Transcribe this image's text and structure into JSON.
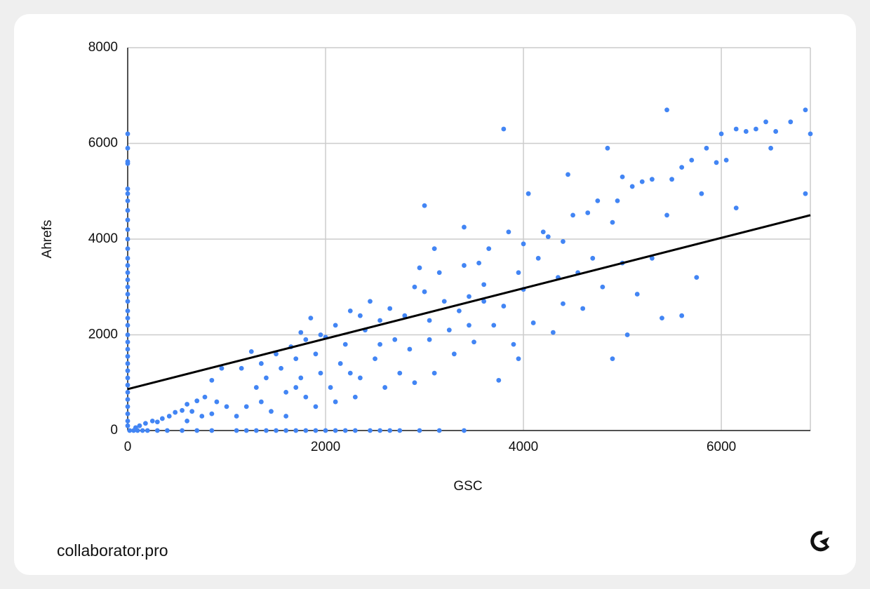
{
  "chart_data": {
    "type": "scatter",
    "xlabel": "GSC",
    "ylabel": "Ahrefs",
    "xlim": [
      0,
      6900
    ],
    "ylim": [
      0,
      8000
    ],
    "xticks": [
      0,
      2000,
      4000,
      6000
    ],
    "yticks": [
      0,
      2000,
      4000,
      6000,
      8000
    ],
    "grid": true,
    "color": "#4285f4",
    "x": [
      0,
      0,
      0,
      0,
      0,
      0,
      0,
      0,
      0,
      0,
      0,
      0,
      0,
      0,
      0,
      0,
      0,
      0,
      0,
      0,
      0,
      0,
      0,
      0,
      0,
      0,
      0,
      0,
      0,
      0,
      0,
      0,
      0,
      0,
      0,
      0,
      20,
      60,
      100,
      150,
      200,
      300,
      400,
      550,
      700,
      850,
      1100,
      1200,
      1300,
      1400,
      1500,
      1600,
      1700,
      1800,
      1900,
      2000,
      2100,
      2200,
      2300,
      2450,
      2550,
      2650,
      2750,
      2950,
      3150,
      3400,
      80,
      120,
      180,
      250,
      300,
      350,
      420,
      480,
      550,
      600,
      650,
      700,
      780,
      850,
      900,
      950,
      1000,
      750,
      600,
      850,
      1100,
      1200,
      1150,
      1250,
      1300,
      1350,
      1400,
      1450,
      1500,
      1550,
      1600,
      1650,
      1700,
      1750,
      1800,
      1800,
      1850,
      1900,
      1900,
      1950,
      2000,
      2050,
      2100,
      2150,
      2200,
      2250,
      2300,
      2350,
      2400,
      2450,
      2500,
      2550,
      2600,
      2650,
      2700,
      2750,
      2800,
      2850,
      2900,
      2950,
      3000,
      3000,
      3050,
      3100,
      3150,
      3200,
      3250,
      3300,
      3350,
      3400,
      3400,
      3450,
      3500,
      3550,
      3600,
      3650,
      3700,
      3750,
      3800,
      3800,
      3850,
      3900,
      3950,
      3950,
      4000,
      4000,
      4050,
      4100,
      4150,
      4200,
      4250,
      4300,
      4350,
      4400,
      4450,
      4500,
      4550,
      4600,
      4650,
      4700,
      4750,
      4800,
      4850,
      4900,
      4900,
      4950,
      5000,
      5050,
      5100,
      5150,
      5200,
      5300,
      5300,
      5400,
      5450,
      5450,
      5500,
      5600,
      5600,
      5700,
      5750,
      5800,
      5850,
      5950,
      6000,
      6050,
      6150,
      6150,
      6250,
      6350,
      6450,
      6500,
      6550,
      6700,
      6850,
      6850,
      6900,
      3450,
      2550,
      1700,
      1600,
      2100,
      1350,
      2900,
      3100,
      3600,
      4400,
      5000,
      2250,
      1950,
      1750,
      2350,
      3050
    ],
    "values": [
      6200,
      5900,
      5620,
      5580,
      5050,
      4950,
      4800,
      4600,
      4400,
      4200,
      4000,
      3800,
      3600,
      3450,
      3300,
      3150,
      3000,
      2850,
      2700,
      2500,
      2350,
      2200,
      2000,
      1850,
      1700,
      1550,
      1400,
      1250,
      1100,
      950,
      800,
      650,
      500,
      350,
      200,
      100,
      0,
      0,
      0,
      0,
      0,
      0,
      0,
      0,
      0,
      0,
      0,
      0,
      0,
      0,
      0,
      0,
      0,
      0,
      0,
      0,
      0,
      0,
      0,
      0,
      0,
      0,
      0,
      0,
      0,
      0,
      60,
      100,
      150,
      200,
      180,
      250,
      300,
      380,
      420,
      550,
      400,
      620,
      700,
      1050,
      600,
      1300,
      500,
      300,
      200,
      350,
      300,
      500,
      1300,
      1650,
      900,
      600,
      1100,
      400,
      1600,
      1300,
      800,
      1750,
      1500,
      2050,
      1900,
      700,
      2350,
      1600,
      500,
      1200,
      1950,
      900,
      2200,
      1400,
      1800,
      2500,
      700,
      1100,
      2100,
      2700,
      1500,
      2300,
      900,
      2550,
      1900,
      1200,
      2400,
      1700,
      3000,
      3400,
      2900,
      4700,
      1900,
      1200,
      3300,
      2700,
      2100,
      1600,
      2500,
      3450,
      4250,
      2200,
      1850,
      3500,
      2700,
      3800,
      2200,
      1050,
      2600,
      6300,
      4150,
      1800,
      3300,
      1500,
      2950,
      3900,
      4950,
      2250,
      3600,
      4150,
      4050,
      2050,
      3200,
      2650,
      5350,
      4500,
      3300,
      2550,
      4550,
      3600,
      4800,
      3000,
      5900,
      4350,
      1500,
      4800,
      5300,
      2000,
      5100,
      2850,
      5200,
      3600,
      5250,
      2350,
      6700,
      4500,
      5250,
      2400,
      5500,
      5650,
      3200,
      4950,
      5900,
      5600,
      6200,
      5650,
      6300,
      4650,
      6250,
      6300,
      6450,
      5900,
      6250,
      6450,
      6700,
      4950,
      6200,
      2800,
      1800,
      900,
      300,
      600,
      1400,
      1000,
      3800,
      3050,
      3950,
      3500,
      1200,
      2000,
      1100,
      2400,
      2300
    ],
    "trendline": {
      "x": [
        0,
        6900
      ],
      "values": [
        865,
        4500
      ],
      "color": "#000000"
    }
  },
  "footer": {
    "brand": "collaborator.pro"
  }
}
